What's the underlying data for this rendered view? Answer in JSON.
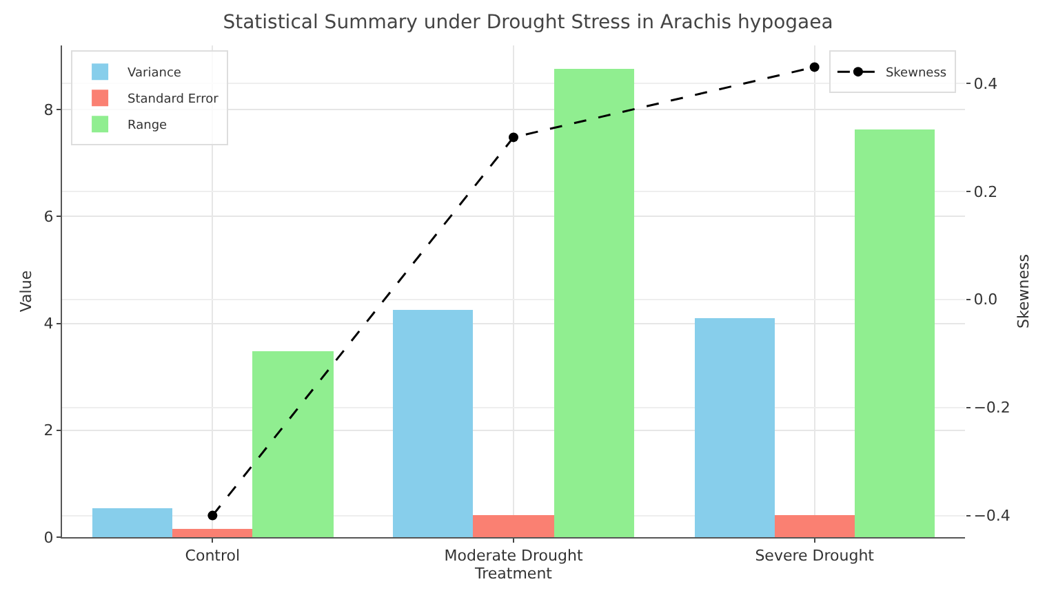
{
  "chart_data": {
    "type": "bar",
    "title": "Statistical Summary under Drought Stress in Arachis hypogaea",
    "xlabel": "Treatment",
    "ylabel": "Value",
    "y2label": "Skewness",
    "categories": [
      "Control",
      "Moderate Drought",
      "Severe Drought"
    ],
    "series": [
      {
        "name": "Variance",
        "color": "#87ceeb",
        "values": [
          0.55,
          4.25,
          4.1
        ]
      },
      {
        "name": "Standard Error",
        "color": "#fa8072",
        "values": [
          0.15,
          0.42,
          0.4
        ]
      },
      {
        "name": "Range",
        "color": "#90ee90",
        "values": [
          3.48,
          8.77,
          7.63
        ]
      },
      {
        "name": "Skewness",
        "type": "line",
        "axis": "y2",
        "color": "#000000",
        "marker": "circle",
        "line_style": "dashed",
        "values": [
          -0.4,
          0.3,
          0.43
        ]
      }
    ],
    "ylim": [
      0,
      9.2
    ],
    "yticks": [
      0,
      2,
      4,
      6,
      8
    ],
    "y2lim": [
      -0.44,
      0.47
    ],
    "y2ticks": [
      {
        "value": -0.4,
        "label": "−0.4"
      },
      {
        "value": -0.2,
        "label": "−0.2"
      },
      {
        "value": 0,
        "label": "0.0"
      },
      {
        "value": 0.2,
        "label": "0.2"
      },
      {
        "value": 0.4,
        "label": "0.4"
      }
    ],
    "grid": true,
    "legend": "top left"
  }
}
